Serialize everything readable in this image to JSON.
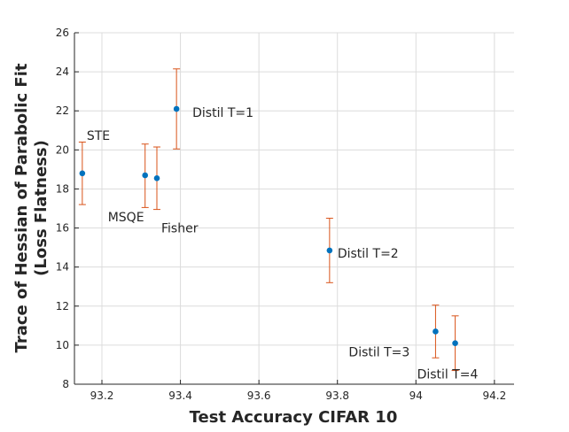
{
  "chart_data": {
    "type": "scatter",
    "title": "",
    "xlabel": "Test Accuracy CIFAR 10",
    "ylabel_line1": "Trace of Hessian of Parabolic Fit",
    "ylabel_line2": "(Loss Flatness)",
    "xlim": [
      93.13,
      94.25
    ],
    "ylim": [
      8,
      26
    ],
    "xticks": [
      93.2,
      93.4,
      93.6,
      93.8,
      94,
      94.2
    ],
    "xtick_labels": [
      "93.2",
      "93.4",
      "93.6",
      "93.8",
      "94",
      "94.2"
    ],
    "yticks": [
      8,
      10,
      12,
      14,
      16,
      18,
      20,
      22,
      24,
      26
    ],
    "ytick_labels": [
      "8",
      "10",
      "12",
      "14",
      "16",
      "18",
      "20",
      "22",
      "24",
      "26"
    ],
    "grid": true,
    "points": [
      {
        "label": "STE",
        "x": 93.15,
        "y": 18.8,
        "err_low": 17.2,
        "err_high": 20.4
      },
      {
        "label": "MSQE",
        "x": 93.31,
        "y": 18.7,
        "err_low": 17.05,
        "err_high": 20.3
      },
      {
        "label": "Fisher",
        "x": 93.34,
        "y": 18.55,
        "err_low": 16.95,
        "err_high": 20.15
      },
      {
        "label": "Distil T=1",
        "x": 93.39,
        "y": 22.1,
        "err_low": 20.05,
        "err_high": 24.15
      },
      {
        "label": "Distil T=2",
        "x": 93.78,
        "y": 14.85,
        "err_low": 13.2,
        "err_high": 16.5
      },
      {
        "label": "Distil T=3",
        "x": 94.05,
        "y": 10.7,
        "err_low": 9.35,
        "err_high": 12.05
      },
      {
        "label": "Distil T=4",
        "x": 94.1,
        "y": 10.1,
        "err_low": 8.7,
        "err_high": 11.5
      }
    ],
    "marker_color": "#0072bd",
    "errorbar_color": "#d95319"
  }
}
